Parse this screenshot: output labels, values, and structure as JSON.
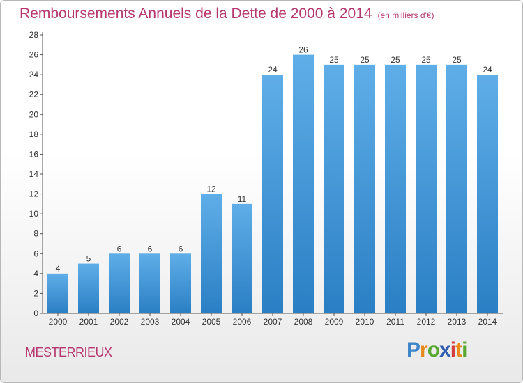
{
  "title": "Remboursements Annuels de la Dette de 2000 à 2014",
  "unit": "(en milliers d'€)",
  "town": "MESTERRIEUX",
  "logo": [
    "P",
    "r",
    "o",
    "x",
    "i",
    "t",
    "i"
  ],
  "colors": {
    "bar_top": "#5faee8",
    "bar_bottom": "#2a7fc4",
    "title": "#b5376e"
  },
  "chart_data": {
    "type": "bar",
    "title": "Remboursements Annuels de la Dette de 2000 à 2014",
    "categories": [
      "2000",
      "2001",
      "2002",
      "2003",
      "2004",
      "2005",
      "2006",
      "2007",
      "2008",
      "2009",
      "2010",
      "2011",
      "2012",
      "2013",
      "2014"
    ],
    "values": [
      4,
      5,
      6,
      6,
      6,
      12,
      11,
      24,
      26,
      25,
      25,
      25,
      25,
      25,
      24
    ],
    "ylim": [
      0,
      28
    ],
    "yticks": [
      0,
      2,
      4,
      6,
      8,
      10,
      12,
      14,
      16,
      18,
      20,
      22,
      24,
      26,
      28
    ],
    "grid": false,
    "legend": "none"
  }
}
